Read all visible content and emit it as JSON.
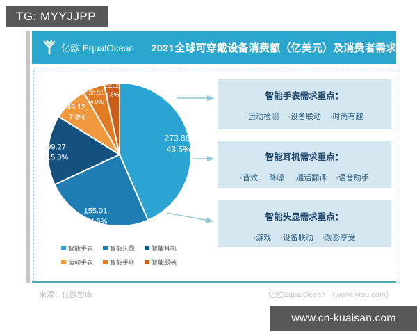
{
  "watermarks": {
    "top": "TG: MYYJJPP",
    "bottom": "www.cn-kuaisan.com"
  },
  "header": {
    "logo_text": "亿欧 EqualOcean",
    "title": "2021全球可穿戴设备消费额（亿美元）及消费者需求",
    "bar_color": "#2BA6CD"
  },
  "chart_data": {
    "type": "pie",
    "title": "2021全球可穿戴设备消费额（亿美元）及消费者需求",
    "unit": "亿美元",
    "label_format": "value, pct%",
    "legend_position": "bottom",
    "series": [
      {
        "name": "智能手表",
        "value": 273.88,
        "pct": 43.5,
        "color": "#2BA4D3"
      },
      {
        "name": "智能头显",
        "value": 155.01,
        "pct": 24.6,
        "color": "#1E7DB2"
      },
      {
        "name": "智能耳机",
        "value": 99.27,
        "pct": 15.8,
        "color": "#14517F"
      },
      {
        "name": "运动手表",
        "value": 49.12,
        "pct": 7.8,
        "color": "#F0993F"
      },
      {
        "name": "智能手环",
        "value": 30.55,
        "pct": 4.9,
        "color": "#E07C23"
      },
      {
        "name": "智能服装",
        "value": 22.02,
        "pct": 3.5,
        "color": "#CC5E1C"
      }
    ]
  },
  "demand_boxes": [
    {
      "title": "智能手表需求重点：",
      "items": [
        "·运动检测",
        "·设备联动",
        "·时尚有趣"
      ]
    },
    {
      "title": "智能耳机需求重点：",
      "items": [
        "·音效",
        "·降噪",
        "·通话翻译",
        "·语音助手"
      ]
    },
    {
      "title": "智能头显需求重点：",
      "items": [
        "·游戏",
        "·设备联动",
        "·观影享受"
      ]
    }
  ],
  "footer": {
    "source": "来源：亿欧智库",
    "credit": "亿欧EqualOcean （www.iyiou.com）"
  }
}
